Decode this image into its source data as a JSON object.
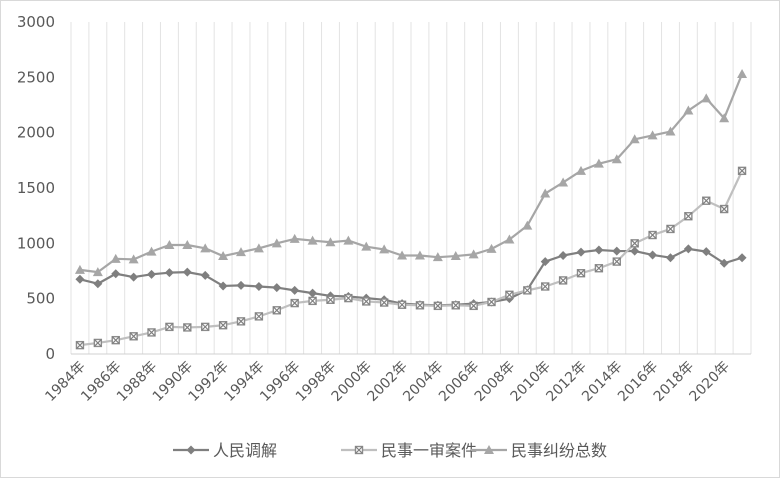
{
  "chart_data": {
    "type": "line",
    "title": "",
    "xlabel": "",
    "ylabel": "",
    "ylim": [
      0,
      3000
    ],
    "yticks": [
      0,
      500,
      1000,
      1500,
      2000,
      2500,
      3000
    ],
    "grid": "vertical",
    "legend_position": "bottom",
    "x": [
      1984,
      1985,
      1986,
      1987,
      1988,
      1989,
      1990,
      1991,
      1992,
      1993,
      1994,
      1995,
      1996,
      1997,
      1998,
      1999,
      2000,
      2001,
      2002,
      2003,
      2004,
      2005,
      2006,
      2007,
      2008,
      2009,
      2010,
      2011,
      2012,
      2013,
      2014,
      2015,
      2016,
      2017,
      2018,
      2019,
      2020,
      2021
    ],
    "xtick_labels": [
      "1984年",
      "1986年",
      "1988年",
      "1990年",
      "1992年",
      "1994年",
      "1996年",
      "1998年",
      "2000年",
      "2002年",
      "2004年",
      "2006年",
      "2008年",
      "2010年",
      "2012年",
      "2014年",
      "2016年",
      "2018年",
      "2020年"
    ],
    "series": [
      {
        "name": "人民调解",
        "color": "#7f7f7f",
        "marker": "diamond",
        "values": [
          675,
          635,
          725,
          695,
          720,
          735,
          740,
          710,
          615,
          620,
          610,
          600,
          575,
          550,
          525,
          520,
          505,
          490,
          455,
          445,
          440,
          445,
          455,
          470,
          500,
          580,
          835,
          890,
          920,
          940,
          930,
          930,
          895,
          870,
          950,
          925,
          820,
          870
        ]
      },
      {
        "name": "民事一审案件",
        "color": "#bfbfbf",
        "marker": "square-x",
        "values": [
          80,
          100,
          125,
          160,
          195,
          245,
          240,
          245,
          260,
          295,
          340,
          395,
          460,
          480,
          490,
          505,
          475,
          465,
          445,
          440,
          435,
          440,
          435,
          470,
          535,
          575,
          610,
          665,
          730,
          775,
          835,
          1000,
          1075,
          1130,
          1245,
          1385,
          1310,
          1655
        ]
      },
      {
        "name": "民事纠纷总数",
        "color": "#a6a6a6",
        "marker": "triangle",
        "values": [
          760,
          740,
          860,
          855,
          925,
          985,
          985,
          955,
          885,
          920,
          955,
          1000,
          1040,
          1025,
          1010,
          1025,
          970,
          945,
          890,
          890,
          875,
          885,
          900,
          950,
          1035,
          1160,
          1450,
          1550,
          1655,
          1720,
          1760,
          1940,
          1975,
          2010,
          2200,
          2310,
          2130,
          2530
        ]
      }
    ]
  }
}
